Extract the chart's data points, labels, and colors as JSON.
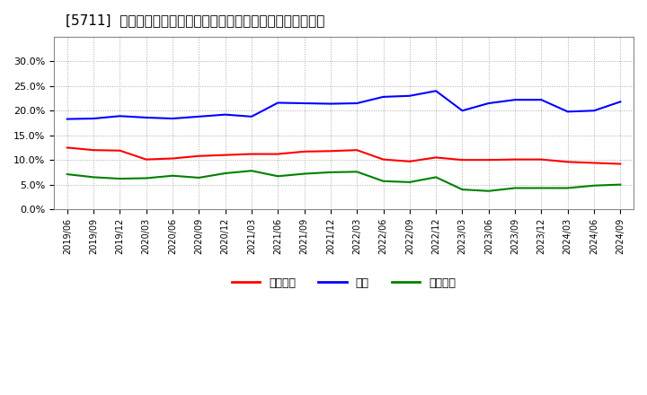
{
  "title": "[5711]  売上債権、在庫、買入債務の総資産に対する比率の推移",
  "legend_labels": [
    "売上債権",
    "在庫",
    "買入債務"
  ],
  "line_colors": [
    "#ff0000",
    "#0000ff",
    "#008000"
  ],
  "background_color": "#ffffff",
  "plot_bg_color": "#ffffff",
  "grid_color": "#aaaaaa",
  "ylim": [
    0.0,
    0.35
  ],
  "yticks": [
    0.0,
    0.05,
    0.1,
    0.15,
    0.2,
    0.25,
    0.3
  ],
  "dates": [
    "2019/06",
    "2019/09",
    "2019/12",
    "2020/03",
    "2020/06",
    "2020/09",
    "2020/12",
    "2021/03",
    "2021/06",
    "2021/09",
    "2021/12",
    "2022/03",
    "2022/06",
    "2022/09",
    "2022/12",
    "2023/03",
    "2023/06",
    "2023/09",
    "2023/12",
    "2024/03",
    "2024/06",
    "2024/09"
  ],
  "urikake": [
    0.125,
    0.12,
    0.119,
    0.101,
    0.103,
    0.108,
    0.11,
    0.112,
    0.112,
    0.117,
    0.118,
    0.12,
    0.101,
    0.097,
    0.105,
    0.1,
    0.1,
    0.101,
    0.101,
    0.096,
    0.094,
    0.092
  ],
  "zaiko": [
    0.183,
    0.184,
    0.189,
    0.186,
    0.184,
    0.188,
    0.192,
    0.188,
    0.216,
    0.215,
    0.214,
    0.215,
    0.228,
    0.23,
    0.24,
    0.2,
    0.215,
    0.222,
    0.222,
    0.198,
    0.2,
    0.218
  ],
  "kaiire": [
    0.071,
    0.065,
    0.062,
    0.063,
    0.068,
    0.064,
    0.073,
    0.078,
    0.067,
    0.072,
    0.075,
    0.076,
    0.057,
    0.055,
    0.065,
    0.04,
    0.037,
    0.043,
    0.043,
    0.043,
    0.048,
    0.05
  ]
}
